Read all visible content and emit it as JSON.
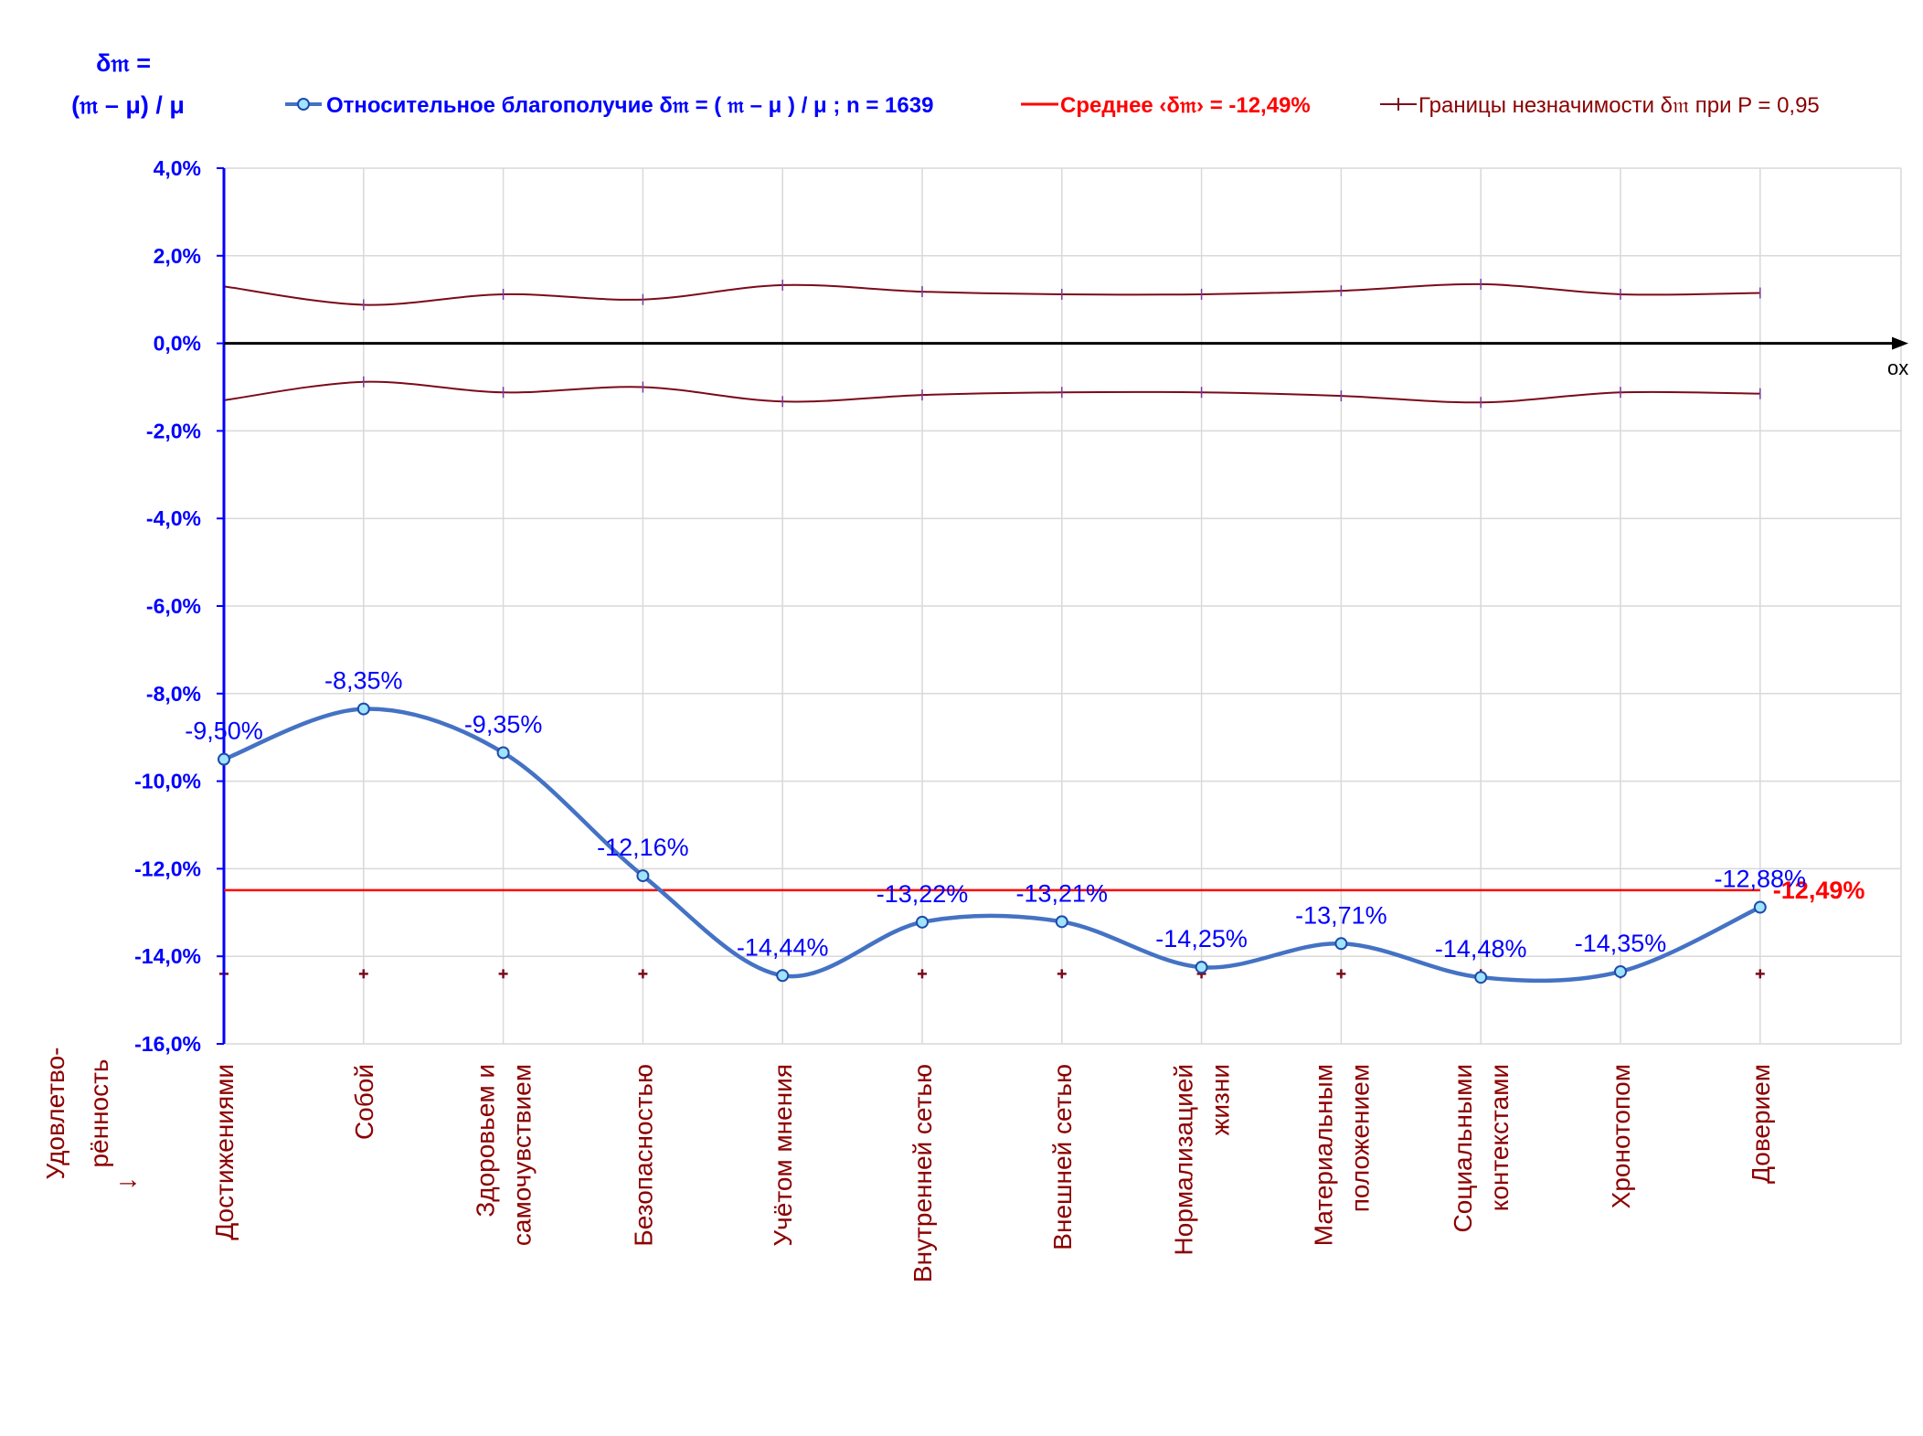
{
  "ylabel_line1": "δ𝔪 =",
  "ylabel_line2": "(𝔪 – μ) / μ",
  "x_axis_name": "ox",
  "xlabel": "Удовлетво-\nрённость\n↓",
  "colors": {
    "series": "#4472c4",
    "mean": "#ff0000",
    "bounds": "#7b0a1a",
    "axis": "#0000ff",
    "labels": "#0000ff",
    "category_text": "#8b0000",
    "grid": "#d9d9d9"
  },
  "chart_data": {
    "type": "line",
    "title": "",
    "ylim": [
      -16.0,
      4.0
    ],
    "yticks": [
      "4,0%",
      "2,0%",
      "0,0%",
      "-2,0%",
      "-4,0%",
      "-6,0%",
      "-8,0%",
      "-10,0%",
      "-12,0%",
      "-14,0%",
      "-16,0%"
    ],
    "ytick_values": [
      4,
      2,
      0,
      -2,
      -4,
      -6,
      -8,
      -10,
      -12,
      -14,
      -16
    ],
    "grid": true,
    "legend_position": "top",
    "categories": [
      "Достижениями",
      "Собой",
      "Здоровьем и\nсамочувствием",
      "Безопасностью",
      "Учётом мнения",
      "Внутренней сетью",
      "Внешней сетью",
      "Нормализацией\nжизни",
      "Материальным\nположением",
      "Социальными\nконтекстами",
      "Хронотопом",
      "Доверием"
    ],
    "series": [
      {
        "name": "Относительное благополучие δ𝔪 = ( 𝔪 – μ ) / μ ; n = 1639",
        "values": [
          -9.5,
          -8.35,
          -9.35,
          -12.16,
          -14.44,
          -13.22,
          -13.21,
          -14.25,
          -13.71,
          -14.48,
          -14.35,
          -12.88
        ],
        "labels": [
          "-9,50%",
          "-8,35%",
          "-9,35%",
          "-12,16%",
          "-14,44%",
          "-13,22%",
          "-13,21%",
          "-14,25%",
          "-13,71%",
          "-14,48%",
          "-14,35%",
          "-12,88%"
        ]
      },
      {
        "name": "Среднее ‹δ𝔪› = -12,49%",
        "value": -12.49,
        "label": "-12,49%"
      },
      {
        "name": "Границы незначимости δ𝔪 при P = 0,95",
        "upper": [
          1.3,
          0.88,
          1.12,
          1.0,
          1.33,
          1.18,
          1.12,
          1.12,
          1.2,
          1.35,
          1.12,
          1.15
        ],
        "lower": [
          -1.3,
          -0.88,
          -1.12,
          -1.0,
          -1.33,
          -1.18,
          -1.12,
          -1.12,
          -1.2,
          -1.35,
          -1.12,
          -1.15
        ]
      }
    ],
    "bottom_markers": [
      -14.4,
      -14.4,
      -14.4,
      -14.4,
      -14.4,
      -14.4,
      -14.4,
      -14.4,
      -14.4,
      -14.4,
      -14.4,
      -14.4
    ]
  }
}
